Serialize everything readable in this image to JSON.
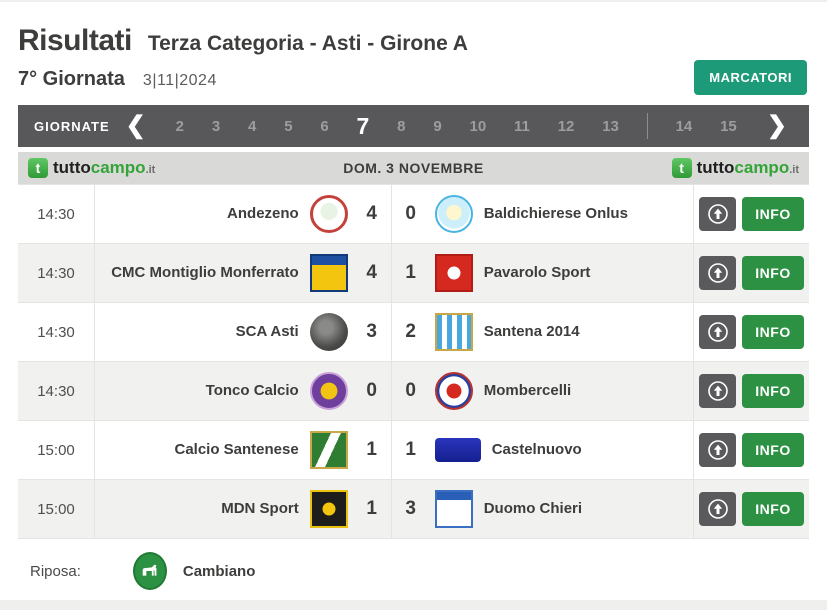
{
  "header": {
    "title": "Risultati",
    "subtitle": "Terza Categoria - Asti - Girone A",
    "matchday": "7° Giornata",
    "date": "3|11|2024",
    "marcatori_label": "MARCATORI"
  },
  "nav": {
    "label": "GIORNATE",
    "prev_icon": "❮",
    "next_icon": "❯",
    "rounds": [
      "2",
      "3",
      "4",
      "5",
      "6",
      "7",
      "8",
      "9",
      "10",
      "11",
      "12",
      "13",
      "14",
      "15"
    ],
    "active_round": "7",
    "divider_after": "13"
  },
  "banner": {
    "brand": {
      "icon_letter": "t",
      "prefix": "tutto",
      "accent": "campo",
      "tld": ".it"
    },
    "date_label": "DOM. 3 NOVEMBRE"
  },
  "matches": [
    {
      "time": "14:30",
      "home": "Andezeno",
      "home_crest": "andezeno",
      "home_score": "4",
      "away_score": "0",
      "away": "Baldichierese Onlus",
      "away_crest": "baldichierese"
    },
    {
      "time": "14:30",
      "home": "CMC Montiglio Monferrato",
      "home_crest": "cmc",
      "home_score": "4",
      "away_score": "1",
      "away": "Pavarolo Sport",
      "away_crest": "pavarolo"
    },
    {
      "time": "14:30",
      "home": "SCA Asti",
      "home_crest": "sca",
      "home_score": "3",
      "away_score": "2",
      "away": "Santena 2014",
      "away_crest": "santena"
    },
    {
      "time": "14:30",
      "home": "Tonco Calcio",
      "home_crest": "tonco",
      "home_score": "0",
      "away_score": "0",
      "away": "Mombercelli",
      "away_crest": "mombercelli"
    },
    {
      "time": "15:00",
      "home": "Calcio Santenese",
      "home_crest": "santenese",
      "home_score": "1",
      "away_score": "1",
      "away": "Castelnuovo",
      "away_crest": "castelnuovo"
    },
    {
      "time": "15:00",
      "home": "MDN Sport",
      "home_crest": "mdn",
      "home_score": "1",
      "away_score": "3",
      "away": "Duomo Chieri",
      "away_crest": "duomo"
    }
  ],
  "actions": {
    "info_label": "INFO",
    "field_icon": "arrow-up-circle"
  },
  "footer": {
    "rest_label": "Riposa:",
    "rest_team": "Cambiano",
    "rest_crest": "cambiano"
  },
  "colors": {
    "accent_teal": "#1d9b78",
    "accent_green": "#2d9143",
    "brand_green": "#35a438",
    "nav_dark": "#58585a",
    "banner_gray": "#d9d9d7",
    "row_alt": "#f1f1f0"
  }
}
